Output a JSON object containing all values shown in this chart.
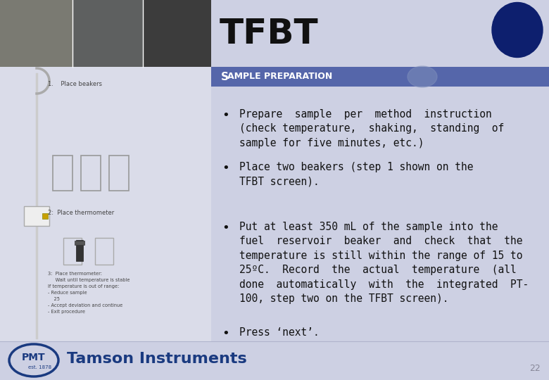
{
  "title": "TFBT",
  "section_header": "Sample preparation",
  "section_header_S": "S",
  "bullets": [
    "Prepare  sample  per  method  instruction\n(check temperature,  shaking,  standing  of\nsample for five minutes, etc.)",
    "Place two beakers (step 1 shown on the\nTFBT screen).",
    "Put at least 350 mL of the sample into the\nfuel  reservoir  beaker  and  check  that  the\ntemperature is still within the range of 15 to\n25ºC.  Record  the  actual  temperature  (all\ndone  automatically  with  the  integrated  PT-\n100, step two on the TFBT screen).",
    "Press ‘next’."
  ],
  "slide_bg": "#cdd0e3",
  "title_bg": "#cdd0e3",
  "title_color": "#111111",
  "header_bg": "#5566aa",
  "header_text_color": "#ffffff",
  "content_bg": "#cdd0e3",
  "bullet_color": "#111111",
  "dark_circle_color": "#0d1f6e",
  "footer_bg": "#cdd0e3",
  "footer_text": "Tamson Instruments",
  "footer_sub": "est. 1878",
  "pmt_color": "#1a3a80",
  "page_number": "22",
  "photo_colors": [
    "#7a7a70",
    "#606060",
    "#404040"
  ],
  "left_panel_bg": "#cdd0e3",
  "header_ghost_color": "#8090bb"
}
